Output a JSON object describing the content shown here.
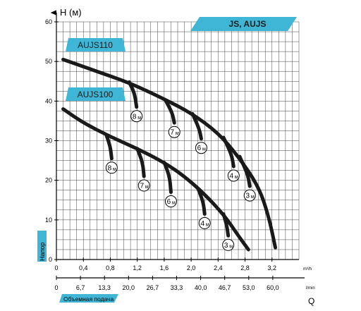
{
  "chart_data": {
    "type": "line",
    "title": "JS, AUJS",
    "ylabel": "H (м)",
    "ylabel_side": "Напор",
    "xlabel_bottom": "Объемная подача",
    "xlabel_end": "Q",
    "x_unit_top": "m³/h",
    "x_unit_bottom": "l/min",
    "xlim": [
      0,
      3.6
    ],
    "ylim": [
      0,
      60
    ],
    "y_ticks": [
      "0",
      "10",
      "20",
      "30",
      "40",
      "50",
      "60"
    ],
    "x_ticks_top": [
      "0",
      "0,4",
      "0,8",
      "1,2",
      "1,6",
      "2,0",
      "2,4",
      "2,8",
      "3,2"
    ],
    "x_ticks_bottom": [
      "0",
      "6,7",
      "13,3",
      "20,0",
      "26,7",
      "33,3",
      "40,0",
      "46,7",
      "53,0",
      "60,0"
    ],
    "grid": true,
    "groups": [
      {
        "name": "AUJS110",
        "main_curve": [
          [
            0.1,
            50.5
          ],
          [
            0.6,
            47.5
          ],
          [
            1.1,
            44.5
          ],
          [
            1.6,
            40.5
          ],
          [
            2.0,
            37.0
          ],
          [
            2.4,
            32.0
          ],
          [
            2.7,
            26.0
          ],
          [
            3.0,
            18.5
          ],
          [
            3.15,
            11.0
          ],
          [
            3.25,
            3.0
          ]
        ],
        "branches": [
          {
            "label": "8",
            "unit": "м",
            "points": [
              [
                1.08,
                44.8
              ],
              [
                1.16,
                42.0
              ],
              [
                1.19,
                38.5
              ]
            ]
          },
          {
            "label": "7",
            "unit": "м",
            "points": [
              [
                1.62,
                40.2
              ],
              [
                1.72,
                37.0
              ],
              [
                1.75,
                34.5
              ]
            ]
          },
          {
            "label": "6",
            "unit": "м",
            "points": [
              [
                2.02,
                36.8
              ],
              [
                2.12,
                33.0
              ],
              [
                2.15,
                30.5
              ]
            ]
          },
          {
            "label": "4",
            "unit": "м",
            "points": [
              [
                2.48,
                30.8
              ],
              [
                2.6,
                26.5
              ],
              [
                2.63,
                23.5
              ]
            ]
          },
          {
            "label": "3",
            "unit": "м",
            "points": [
              [
                2.72,
                26.0
              ],
              [
                2.84,
                21.5
              ],
              [
                2.87,
                18.5
              ]
            ]
          }
        ]
      },
      {
        "name": "AUJS100",
        "main_curve": [
          [
            0.1,
            38.0
          ],
          [
            0.4,
            34.5
          ],
          [
            0.8,
            31.0
          ],
          [
            1.2,
            28.0
          ],
          [
            1.6,
            24.5
          ],
          [
            1.9,
            21.0
          ],
          [
            2.2,
            16.5
          ],
          [
            2.5,
            11.0
          ],
          [
            2.7,
            6.0
          ],
          [
            2.85,
            2.5
          ]
        ],
        "branches": [
          {
            "label": "8",
            "unit": "м",
            "points": [
              [
                0.74,
                31.5
              ],
              [
                0.8,
                28.5
              ],
              [
                0.82,
                25.5
              ]
            ]
          },
          {
            "label": "7",
            "unit": "м",
            "points": [
              [
                1.2,
                28.0
              ],
              [
                1.28,
                24.5
              ],
              [
                1.3,
                21.0
              ]
            ]
          },
          {
            "label": "6",
            "unit": "м",
            "points": [
              [
                1.6,
                24.5
              ],
              [
                1.68,
                21.0
              ],
              [
                1.7,
                17.0
              ]
            ]
          },
          {
            "label": "4",
            "unit": "м",
            "points": [
              [
                2.1,
                18.0
              ],
              [
                2.18,
                14.5
              ],
              [
                2.2,
                11.5
              ]
            ]
          },
          {
            "label": "3",
            "unit": "м",
            "points": [
              [
                2.48,
                11.5
              ],
              [
                2.53,
                8.5
              ],
              [
                2.55,
                6.0
              ]
            ]
          }
        ]
      }
    ]
  },
  "style": {
    "accent": "#3fb6d6",
    "curve_color": "#1a1a1a",
    "grid_color": "#444444"
  }
}
